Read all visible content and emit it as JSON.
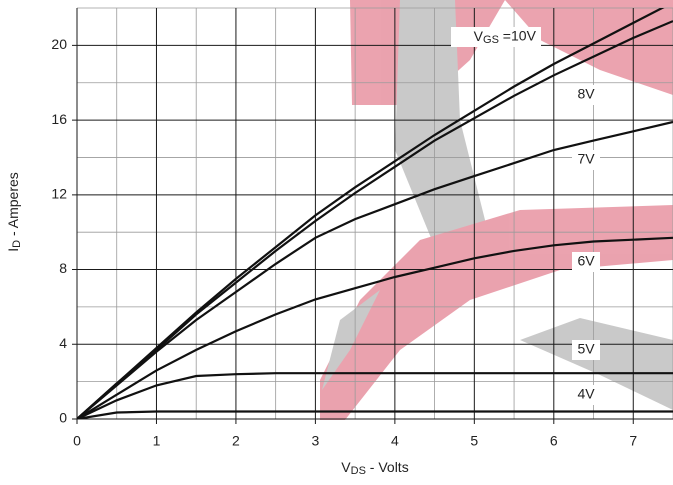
{
  "chart_data": {
    "type": "line",
    "x_label": {
      "main": "V",
      "sub": "DS",
      "rest": " - Volts"
    },
    "y_label": {
      "main": "I",
      "sub": "D",
      "rest": " - Amperes"
    },
    "series_label_prefix": {
      "main": "V",
      "sub": "GS",
      "rest": " = "
    },
    "x": [
      0,
      0.5,
      1,
      1.5,
      2,
      2.5,
      3,
      3.5,
      4,
      4.5,
      5,
      5.5,
      6,
      6.5,
      7,
      7.5
    ],
    "series": [
      {
        "name": "10V",
        "color": "#111111",
        "values": [
          0,
          1.9,
          3.8,
          5.7,
          7.5,
          9.2,
          10.9,
          12.4,
          13.8,
          15.2,
          16.5,
          17.8,
          19.0,
          20.1,
          21.2,
          22.3
        ]
      },
      {
        "name": "8V",
        "color": "#111111",
        "values": [
          0,
          1.9,
          3.7,
          5.6,
          7.3,
          9.0,
          10.6,
          12.1,
          13.5,
          14.9,
          16.1,
          17.3,
          18.4,
          19.4,
          20.4,
          21.3
        ]
      },
      {
        "name": "7V",
        "color": "#111111",
        "values": [
          0,
          1.8,
          3.6,
          5.3,
          6.8,
          8.3,
          9.7,
          10.7,
          11.5,
          12.3,
          13.0,
          13.7,
          14.4,
          14.9,
          15.4,
          15.9
        ]
      },
      {
        "name": "6V",
        "color": "#111111",
        "values": [
          0,
          1.3,
          2.6,
          3.7,
          4.7,
          5.6,
          6.4,
          7.0,
          7.6,
          8.1,
          8.6,
          9.0,
          9.3,
          9.5,
          9.6,
          9.7
        ]
      },
      {
        "name": "5V",
        "color": "#111111",
        "values": [
          0,
          1.0,
          1.8,
          2.3,
          2.4,
          2.45,
          2.45,
          2.45,
          2.45,
          2.45,
          2.45,
          2.45,
          2.45,
          2.45,
          2.45,
          2.45
        ]
      },
      {
        "name": "4V",
        "color": "#111111",
        "values": [
          0,
          0.35,
          0.4,
          0.4,
          0.4,
          0.4,
          0.4,
          0.4,
          0.4,
          0.4,
          0.4,
          0.4,
          0.4,
          0.4,
          0.4,
          0.4
        ]
      }
    ],
    "xlim": [
      0,
      7.5
    ],
    "ylim": [
      0,
      22
    ],
    "xticks": [
      0,
      1,
      2,
      3,
      4,
      5,
      6,
      7
    ],
    "yticks": [
      0,
      4,
      8,
      12,
      16,
      20
    ],
    "x_minor_ticks": [
      0.5,
      1.5,
      2.5,
      3.5,
      4.5,
      5.5,
      6.5,
      7.5
    ],
    "y_minor_ticks": [
      2,
      6,
      10,
      14,
      18,
      22
    ],
    "grid": true
  }
}
